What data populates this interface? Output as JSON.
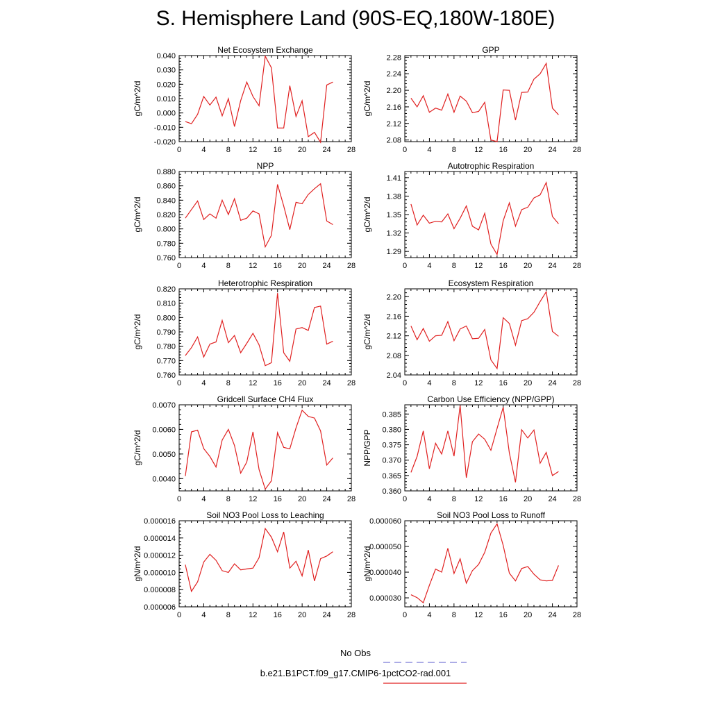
{
  "page": {
    "title": "S. Hemisphere Land (90S-EQ,180W-180E)",
    "legend": [
      {
        "label": "No Obs",
        "color": "#7a7ad6",
        "dashed": true
      },
      {
        "label": "b.e21.B1PCT.f09_g17.CMIP6-1pctCO2-rad.001",
        "color": "#e02020",
        "dashed": false
      }
    ]
  },
  "chart_data": [
    {
      "type": "line",
      "title": "Net Ecosystem Exchange",
      "ylabel": "gC/m^2/d",
      "xlabel": "",
      "xlim": [
        0,
        28
      ],
      "xticks": [
        0,
        4,
        8,
        12,
        16,
        20,
        24,
        28
      ],
      "ylim": [
        -0.02,
        0.04
      ],
      "yticks": [
        "-0.020",
        "-0.010",
        "0.000",
        "0.010",
        "0.020",
        "0.030",
        "0.040"
      ],
      "series": [
        {
          "x": [
            1,
            2,
            3,
            4,
            5,
            6,
            7,
            8,
            9,
            10,
            11,
            12,
            13,
            14,
            15,
            16,
            17,
            18,
            19,
            20,
            21,
            22,
            23,
            24,
            25
          ],
          "y": [
            -0.006,
            -0.0075,
            -0.001,
            0.0115,
            0.0055,
            0.011,
            -0.002,
            0.01,
            -0.0095,
            0.0085,
            0.0215,
            0.0115,
            0.005,
            0.0395,
            0.0315,
            -0.0105,
            -0.0105,
            0.019,
            -0.0025,
            0.0085,
            -0.0165,
            -0.0135,
            -0.0205,
            0.0195,
            0.0215
          ],
          "color": "#e02020"
        }
      ]
    },
    {
      "type": "line",
      "title": "GPP",
      "ylabel": "gC/m^2/d",
      "xlabel": "",
      "xlim": [
        0,
        28
      ],
      "xticks": [
        0,
        4,
        8,
        12,
        16,
        20,
        24,
        28
      ],
      "ylim": [
        2.076,
        2.284
      ],
      "yticks": [
        "2.08",
        "2.12",
        "2.16",
        "2.20",
        "2.24",
        "2.28"
      ],
      "series": [
        {
          "x": [
            1,
            2,
            3,
            4,
            5,
            6,
            7,
            8,
            9,
            10,
            11,
            12,
            13,
            14,
            15,
            16,
            17,
            18,
            19,
            20,
            21,
            22,
            23,
            24,
            25
          ],
          "y": [
            2.181,
            2.16,
            2.187,
            2.147,
            2.157,
            2.152,
            2.191,
            2.147,
            2.186,
            2.174,
            2.146,
            2.149,
            2.171,
            2.08,
            2.076,
            2.201,
            2.2,
            2.128,
            2.195,
            2.196,
            2.227,
            2.24,
            2.265,
            2.157,
            2.141
          ],
          "color": "#e02020"
        }
      ]
    },
    {
      "type": "line",
      "title": "NPP",
      "ylabel": "gC/m^2/d",
      "xlabel": "",
      "xlim": [
        0,
        28
      ],
      "xticks": [
        0,
        4,
        8,
        12,
        16,
        20,
        24,
        28
      ],
      "ylim": [
        0.76,
        0.88
      ],
      "yticks": [
        "0.760",
        "0.780",
        "0.800",
        "0.820",
        "0.840",
        "0.860",
        "0.880"
      ],
      "series": [
        {
          "x": [
            1,
            2,
            3,
            4,
            5,
            6,
            7,
            8,
            9,
            10,
            11,
            12,
            13,
            14,
            15,
            16,
            17,
            18,
            19,
            20,
            21,
            22,
            23,
            24,
            25
          ],
          "y": [
            0.815,
            0.827,
            0.839,
            0.813,
            0.821,
            0.815,
            0.84,
            0.82,
            0.842,
            0.812,
            0.815,
            0.825,
            0.821,
            0.775,
            0.791,
            0.862,
            0.832,
            0.799,
            0.837,
            0.835,
            0.848,
            0.856,
            0.863,
            0.811,
            0.806
          ],
          "color": "#e02020"
        }
      ]
    },
    {
      "type": "line",
      "title": "Autotrophic Respiration",
      "ylabel": "gC/m^2/d",
      "xlabel": "",
      "xlim": [
        0,
        28
      ],
      "xticks": [
        0,
        4,
        8,
        12,
        16,
        20,
        24,
        28
      ],
      "ylim": [
        1.28,
        1.42
      ],
      "yticks": [
        "1.29",
        "1.32",
        "1.35",
        "1.38",
        "1.41"
      ],
      "series": [
        {
          "x": [
            1,
            2,
            3,
            4,
            5,
            6,
            7,
            8,
            9,
            10,
            11,
            12,
            13,
            14,
            15,
            16,
            17,
            18,
            19,
            20,
            21,
            22,
            23,
            24,
            25
          ],
          "y": [
            1.367,
            1.333,
            1.349,
            1.336,
            1.339,
            1.338,
            1.351,
            1.327,
            1.344,
            1.364,
            1.331,
            1.325,
            1.352,
            1.302,
            1.285,
            1.34,
            1.369,
            1.331,
            1.358,
            1.362,
            1.377,
            1.382,
            1.402,
            1.347,
            1.335
          ],
          "color": "#e02020"
        }
      ]
    },
    {
      "type": "line",
      "title": "Heterotrophic Respiration",
      "ylabel": "gC/m^2/d",
      "xlabel": "",
      "xlim": [
        0,
        28
      ],
      "xticks": [
        0,
        4,
        8,
        12,
        16,
        20,
        24,
        28
      ],
      "ylim": [
        0.76,
        0.82
      ],
      "yticks": [
        "0.760",
        "0.770",
        "0.780",
        "0.790",
        "0.800",
        "0.810",
        "0.820"
      ],
      "series": [
        {
          "x": [
            1,
            2,
            3,
            4,
            5,
            6,
            7,
            8,
            9,
            10,
            11,
            12,
            13,
            14,
            15,
            16,
            17,
            18,
            19,
            20,
            21,
            22,
            23,
            24,
            25
          ],
          "y": [
            0.7735,
            0.779,
            0.7865,
            0.7725,
            0.7815,
            0.783,
            0.798,
            0.7825,
            0.7875,
            0.7755,
            0.782,
            0.789,
            0.781,
            0.7665,
            0.7685,
            0.817,
            0.7755,
            0.7695,
            0.792,
            0.793,
            0.791,
            0.807,
            0.808,
            0.7815,
            0.7835
          ],
          "color": "#e02020"
        }
      ]
    },
    {
      "type": "line",
      "title": "Ecosystem Respiration",
      "ylabel": "gC/m^2/d",
      "xlabel": "",
      "xlim": [
        0,
        28
      ],
      "xticks": [
        0,
        4,
        8,
        12,
        16,
        20,
        24,
        28
      ],
      "ylim": [
        2.04,
        2.216
      ],
      "yticks": [
        "2.04",
        "2.08",
        "2.12",
        "2.16",
        "2.20"
      ],
      "series": [
        {
          "x": [
            1,
            2,
            3,
            4,
            5,
            6,
            7,
            8,
            9,
            10,
            11,
            12,
            13,
            14,
            15,
            16,
            17,
            18,
            19,
            20,
            21,
            22,
            23,
            24,
            25
          ],
          "y": [
            2.14,
            2.112,
            2.135,
            2.109,
            2.12,
            2.121,
            2.149,
            2.11,
            2.134,
            2.14,
            2.114,
            2.115,
            2.133,
            2.071,
            2.053,
            2.157,
            2.145,
            2.101,
            2.151,
            2.155,
            2.168,
            2.19,
            2.21,
            2.129,
            2.119
          ],
          "color": "#e02020"
        }
      ]
    },
    {
      "type": "line",
      "title": "Gridcell Surface CH4 Flux",
      "ylabel": "gC/m^2/d",
      "xlabel": "",
      "xlim": [
        0,
        28
      ],
      "xticks": [
        0,
        4,
        8,
        12,
        16,
        20,
        24,
        28
      ],
      "ylim": [
        0.0035,
        0.007
      ],
      "yticks": [
        "0.0040",
        "0.0050",
        "0.0060",
        "0.0070"
      ],
      "series": [
        {
          "x": [
            1,
            2,
            3,
            4,
            5,
            6,
            7,
            8,
            9,
            10,
            11,
            12,
            13,
            14,
            15,
            16,
            17,
            18,
            19,
            20,
            21,
            22,
            23,
            24,
            25
          ],
          "y": [
            0.0041,
            0.0059,
            0.00597,
            0.00522,
            0.0049,
            0.00447,
            0.00557,
            0.006,
            0.00535,
            0.00422,
            0.00467,
            0.0059,
            0.00437,
            0.00357,
            0.00391,
            0.00587,
            0.00527,
            0.00521,
            0.00606,
            0.00678,
            0.00653,
            0.00646,
            0.00594,
            0.00455,
            0.00484
          ],
          "color": "#e02020"
        }
      ]
    },
    {
      "type": "line",
      "title": "Carbon Use Efficiency (NPP/GPP)",
      "ylabel": "NPP/GPP",
      "xlabel": "",
      "xlim": [
        0,
        28
      ],
      "xticks": [
        0,
        4,
        8,
        12,
        16,
        20,
        24,
        28
      ],
      "ylim": [
        0.36,
        0.388
      ],
      "yticks": [
        "0.360",
        "0.365",
        "0.370",
        "0.375",
        "0.380",
        "0.385"
      ],
      "series": [
        {
          "x": [
            1,
            2,
            3,
            4,
            5,
            6,
            7,
            8,
            9,
            10,
            11,
            12,
            13,
            14,
            15,
            16,
            17,
            18,
            19,
            20,
            21,
            22,
            23,
            24,
            25
          ],
          "y": [
            0.366,
            0.3712,
            0.3795,
            0.3672,
            0.3755,
            0.372,
            0.3795,
            0.3713,
            0.3878,
            0.3643,
            0.376,
            0.3785,
            0.3768,
            0.3732,
            0.3803,
            0.3872,
            0.3723,
            0.3628,
            0.3799,
            0.3772,
            0.3798,
            0.369,
            0.3725,
            0.365,
            0.3663
          ],
          "color": "#e02020"
        }
      ]
    },
    {
      "type": "line",
      "title": "Soil NO3 Pool Loss to Leaching",
      "ylabel": "gN/m^2/d",
      "xlabel": "",
      "xlim": [
        0,
        28
      ],
      "xticks": [
        0,
        4,
        8,
        12,
        16,
        20,
        24,
        28
      ],
      "ylim": [
        6e-06,
        1.6e-05
      ],
      "yticks": [
        "0.000006",
        "0.000008",
        "0.000010",
        "0.000012",
        "0.000014",
        "0.000016"
      ],
      "series": [
        {
          "x": [
            1,
            2,
            3,
            4,
            5,
            6,
            7,
            8,
            9,
            10,
            11,
            12,
            13,
            14,
            15,
            16,
            17,
            18,
            19,
            20,
            21,
            22,
            23,
            24,
            25
          ],
          "y": [
            1.09e-05,
            7.8e-06,
            8.9e-06,
            1.12e-05,
            1.21e-05,
            1.14e-05,
            1.02e-05,
            1e-05,
            1.1e-05,
            1.03e-05,
            1.04e-05,
            1.05e-05,
            1.17e-05,
            1.51e-05,
            1.41e-05,
            1.24e-05,
            1.47e-05,
            1.05e-05,
            1.13e-05,
            9.6e-06,
            1.26e-05,
            9e-06,
            1.16e-05,
            1.19e-05,
            1.24e-05
          ],
          "color": "#e02020"
        }
      ]
    },
    {
      "type": "line",
      "title": "Soil NO3 Pool Loss to Runoff",
      "ylabel": "gN/m^2/d",
      "xlabel": "",
      "xlim": [
        0,
        28
      ],
      "xticks": [
        0,
        4,
        8,
        12,
        16,
        20,
        24,
        28
      ],
      "ylim": [
        2.65e-05,
        6e-05
      ],
      "yticks": [
        "0.000030",
        "0.000040",
        "0.000050",
        "0.000060"
      ],
      "series": [
        {
          "x": [
            1,
            2,
            3,
            4,
            5,
            6,
            7,
            8,
            9,
            10,
            11,
            12,
            13,
            14,
            15,
            16,
            17,
            18,
            19,
            20,
            21,
            22,
            23,
            24,
            25
          ],
          "y": [
            3.12e-05,
            3.01e-05,
            2.81e-05,
            3.49e-05,
            4.12e-05,
            4e-05,
            4.93e-05,
            3.95e-05,
            4.52e-05,
            3.57e-05,
            4.06e-05,
            4.3e-05,
            4.77e-05,
            5.52e-05,
            5.88e-05,
            5.04e-05,
            3.96e-05,
            3.66e-05,
            4.14e-05,
            4.22e-05,
            3.92e-05,
            3.7e-05,
            3.66e-05,
            3.68e-05,
            4.26e-05
          ],
          "color": "#e02020"
        }
      ]
    }
  ]
}
